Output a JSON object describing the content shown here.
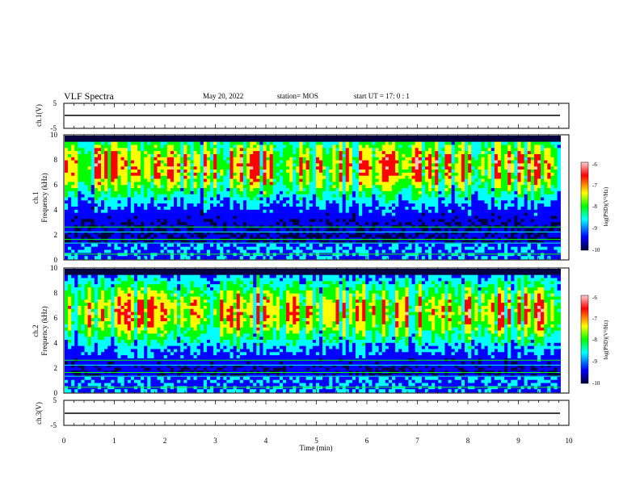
{
  "header": {
    "title": "VLF Spectra",
    "date": "May 20, 2022",
    "station": "station= MOS",
    "start": "start  UT =   17: 0  : 1"
  },
  "chart_data": {
    "type": "heatmap",
    "xlabel": "Time  (min)",
    "xlim": [
      0,
      10
    ],
    "x_ticks": [
      "0",
      "1",
      "2",
      "3",
      "4",
      "5",
      "6",
      "7",
      "8",
      "9",
      "10"
    ],
    "panels": [
      {
        "name": "ch.1(V)",
        "ylabel": "ch.1(V)",
        "ylim": [
          -5,
          5
        ],
        "y_ticks": [
          "5",
          "-5"
        ],
        "kind": "waveform",
        "mean": 0
      },
      {
        "name": "ch.1",
        "ylabel_top": "ch.1",
        "ylabel": "Frequency (kHz)",
        "ylim": [
          0,
          10
        ],
        "y_ticks": [
          "0",
          "2",
          "4",
          "6",
          "8",
          "10"
        ],
        "kind": "spectrogram",
        "colorbar": {
          "label": "log(PSD)(V²/Hz)",
          "range": [
            -10,
            -6
          ],
          "ticks": [
            "-6",
            "-7",
            "-8",
            "-9",
            "-10"
          ]
        },
        "peak_log_psd_band_khz": [
          6,
          9
        ],
        "background_log_psd": -9.5
      },
      {
        "name": "ch.2",
        "ylabel_top": "ch.2",
        "ylabel": "Frequency (kHz)",
        "ylim": [
          0,
          10
        ],
        "y_ticks": [
          "0",
          "2",
          "4",
          "6",
          "8",
          "10"
        ],
        "kind": "spectrogram",
        "colorbar": {
          "label": "log(PSD)(V²/Hz)",
          "range": [
            -10,
            -6
          ],
          "ticks": [
            "-6",
            "-7",
            "-8",
            "-9",
            "-10"
          ]
        },
        "peak_log_psd_band_khz": [
          5,
          8
        ],
        "background_log_psd": -9.5
      },
      {
        "name": "ch.3(V)",
        "ylabel": "ch.3(V)",
        "ylim": [
          -5,
          5
        ],
        "y_ticks": [
          "5",
          "-5"
        ],
        "kind": "waveform",
        "mean": 0
      }
    ],
    "colormap": [
      "#000040",
      "#0000ff",
      "#00ffff",
      "#00ff00",
      "#ffff00",
      "#ff0000",
      "#ffc0c0"
    ]
  }
}
